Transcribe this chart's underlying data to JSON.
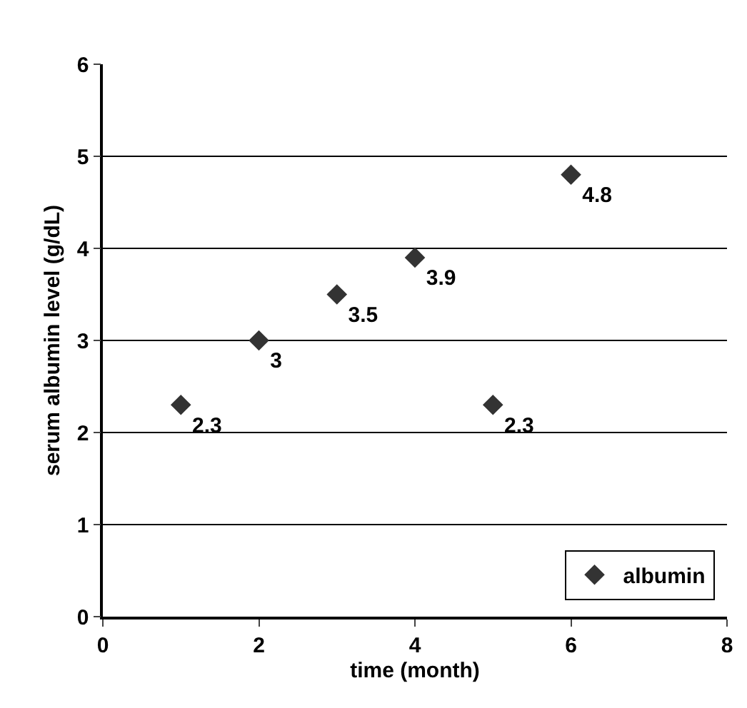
{
  "chart_data": {
    "type": "scatter",
    "xlabel": "time (month)",
    "ylabel": "serum albumin level (g/dL)",
    "x": [
      1,
      2,
      3,
      4,
      5,
      6
    ],
    "series": [
      {
        "name": "albumin",
        "color": "#333333",
        "values": [
          2.3,
          3,
          3.5,
          3.9,
          2.3,
          4.8
        ]
      }
    ],
    "xlim": [
      0,
      8
    ],
    "xticks": [
      0,
      2,
      4,
      6,
      8
    ],
    "ylim": [
      0,
      6
    ],
    "yticks": [
      0,
      1,
      2,
      3,
      4,
      5,
      6
    ],
    "grid": "y",
    "legend": "bottom right",
    "marker": "diamond",
    "data_labels": true
  }
}
